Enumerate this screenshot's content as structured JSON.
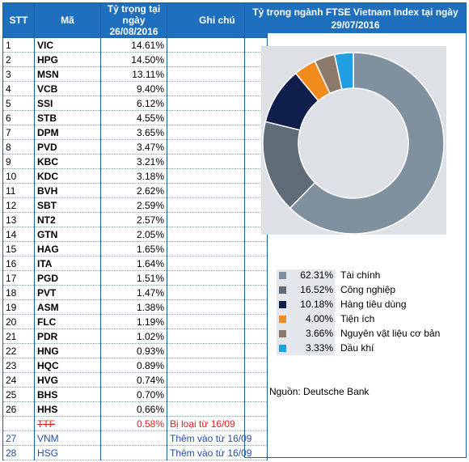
{
  "table": {
    "header": [
      "STT",
      "Mã",
      "Tỷ trọng tại ngày 26/08/2016",
      "Ghi chú"
    ],
    "rows": [
      [
        "1",
        "VIC",
        "14.61%",
        null
      ],
      [
        "2",
        "HPG",
        "14.50%",
        null
      ],
      [
        "3",
        "MSN",
        "13.11%",
        null
      ],
      [
        "4",
        "VCB",
        "9.40%",
        null
      ],
      [
        "5",
        "SSI",
        "6.12%",
        null
      ],
      [
        "6",
        "STB",
        "4.55%",
        null
      ],
      [
        "7",
        "DPM",
        "3.65%",
        null
      ],
      [
        "8",
        "PVD",
        "3.47%",
        null
      ],
      [
        "9",
        "KBC",
        "3.21%",
        null
      ],
      [
        "10",
        "KDC",
        "3.18%",
        null
      ],
      [
        "11",
        "BVH",
        "2.62%",
        null
      ],
      [
        "12",
        "SBT",
        "2.59%",
        null
      ],
      [
        "13",
        "NT2",
        "2.57%",
        null
      ],
      [
        "14",
        "GTN",
        "2.05%",
        null
      ],
      [
        "15",
        "HAG",
        "1.65%",
        null
      ],
      [
        "16",
        "ITA",
        "1.64%",
        null
      ],
      [
        "17",
        "PGD",
        "1.51%",
        null
      ],
      [
        "18",
        "PVT",
        "1.47%",
        null
      ],
      [
        "19",
        "ASM",
        "1.38%",
        null
      ],
      [
        "20",
        "FLC",
        "1.19%",
        null
      ],
      [
        "21",
        "PDR",
        "1.02%",
        null
      ],
      [
        "22",
        "HNG",
        "0.93%",
        null
      ],
      [
        "23",
        "HQC",
        "0.89%",
        null
      ],
      [
        "24",
        "HVG",
        "0.74%",
        null
      ],
      [
        "25",
        "BHS",
        "0.70%",
        null
      ],
      [
        "26",
        "HHS",
        "0.66%",
        null
      ],
      [
        null,
        "TTF",
        "0.58%",
        "Bị loại từ 16/09"
      ],
      [
        "27",
        "VNM",
        null,
        "Thêm vào từ 16/09"
      ],
      [
        "28",
        "HSG",
        null,
        "Thêm vào từ 16/09"
      ]
    ]
  },
  "chart_data": {
    "type": "pie",
    "title": "Tỷ trọng ngành FTSE Vietnam Index tại ngày 29/07/2016",
    "categories": [
      "Tài chính",
      "Công nghiệp",
      "Hàng tiêu dùng",
      "Tiện ích",
      "Nguyên vật liệu cơ bản",
      "Dầu khí"
    ],
    "values": [
      62.31,
      16.52,
      10.18,
      4.0,
      3.66,
      3.33
    ],
    "value_labels": [
      "62.31%",
      "16.52%",
      "10.18%",
      "4.00%",
      "3.66%",
      "3.33%"
    ],
    "colors": [
      "#7f919f",
      "#5f6b76",
      "#0f1f4b",
      "#f28b1e",
      "#8b7a6b",
      "#1f9fe2"
    ],
    "source": "Nguồn: Deutsche Bank"
  }
}
